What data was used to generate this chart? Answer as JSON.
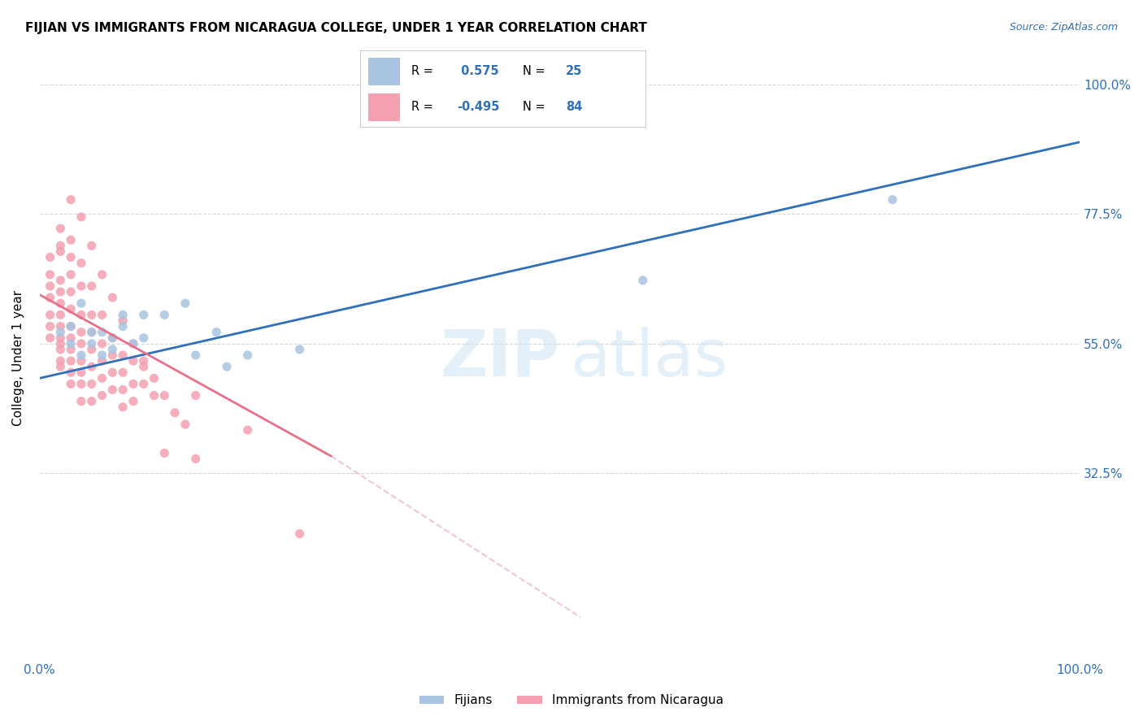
{
  "title": "FIJIAN VS IMMIGRANTS FROM NICARAGUA COLLEGE, UNDER 1 YEAR CORRELATION CHART",
  "source": "Source: ZipAtlas.com",
  "ylabel": "College, Under 1 year",
  "ytick_labels": [
    "100.0%",
    "77.5%",
    "55.0%",
    "32.5%"
  ],
  "ytick_values": [
    1.0,
    0.775,
    0.55,
    0.325
  ],
  "xlim": [
    0.0,
    1.0
  ],
  "ylim": [
    0.0,
    1.05
  ],
  "fijian_color": "#a8c4e0",
  "nicaragua_color": "#f4a0b0",
  "fijian_line_color": "#3070b8",
  "nicaragua_line_color": "#e8708a",
  "nicaragua_dashed_color": "#e8b0c0",
  "fijian_scatter": [
    [
      0.02,
      0.57
    ],
    [
      0.03,
      0.55
    ],
    [
      0.03,
      0.58
    ],
    [
      0.04,
      0.62
    ],
    [
      0.04,
      0.53
    ],
    [
      0.05,
      0.55
    ],
    [
      0.05,
      0.57
    ],
    [
      0.06,
      0.53
    ],
    [
      0.06,
      0.57
    ],
    [
      0.07,
      0.54
    ],
    [
      0.07,
      0.56
    ],
    [
      0.08,
      0.6
    ],
    [
      0.08,
      0.58
    ],
    [
      0.09,
      0.55
    ],
    [
      0.1,
      0.6
    ],
    [
      0.1,
      0.56
    ],
    [
      0.12,
      0.6
    ],
    [
      0.14,
      0.62
    ],
    [
      0.15,
      0.53
    ],
    [
      0.17,
      0.57
    ],
    [
      0.18,
      0.51
    ],
    [
      0.2,
      0.53
    ],
    [
      0.25,
      0.54
    ],
    [
      0.58,
      0.66
    ],
    [
      0.82,
      0.8
    ]
  ],
  "nicaragua_scatter": [
    [
      0.01,
      0.63
    ],
    [
      0.01,
      0.7
    ],
    [
      0.01,
      0.67
    ],
    [
      0.01,
      0.65
    ],
    [
      0.01,
      0.6
    ],
    [
      0.01,
      0.58
    ],
    [
      0.01,
      0.56
    ],
    [
      0.02,
      0.75
    ],
    [
      0.02,
      0.71
    ],
    [
      0.02,
      0.72
    ],
    [
      0.02,
      0.66
    ],
    [
      0.02,
      0.64
    ],
    [
      0.02,
      0.62
    ],
    [
      0.02,
      0.6
    ],
    [
      0.02,
      0.58
    ],
    [
      0.02,
      0.56
    ],
    [
      0.02,
      0.55
    ],
    [
      0.02,
      0.54
    ],
    [
      0.02,
      0.52
    ],
    [
      0.02,
      0.51
    ],
    [
      0.03,
      0.8
    ],
    [
      0.03,
      0.73
    ],
    [
      0.03,
      0.7
    ],
    [
      0.03,
      0.67
    ],
    [
      0.03,
      0.64
    ],
    [
      0.03,
      0.61
    ],
    [
      0.03,
      0.58
    ],
    [
      0.03,
      0.56
    ],
    [
      0.03,
      0.54
    ],
    [
      0.03,
      0.52
    ],
    [
      0.03,
      0.5
    ],
    [
      0.03,
      0.48
    ],
    [
      0.04,
      0.77
    ],
    [
      0.04,
      0.69
    ],
    [
      0.04,
      0.65
    ],
    [
      0.04,
      0.6
    ],
    [
      0.04,
      0.57
    ],
    [
      0.04,
      0.55
    ],
    [
      0.04,
      0.52
    ],
    [
      0.04,
      0.5
    ],
    [
      0.04,
      0.48
    ],
    [
      0.04,
      0.45
    ],
    [
      0.05,
      0.72
    ],
    [
      0.05,
      0.65
    ],
    [
      0.05,
      0.6
    ],
    [
      0.05,
      0.57
    ],
    [
      0.05,
      0.54
    ],
    [
      0.05,
      0.51
    ],
    [
      0.05,
      0.48
    ],
    [
      0.05,
      0.45
    ],
    [
      0.06,
      0.67
    ],
    [
      0.06,
      0.6
    ],
    [
      0.06,
      0.55
    ],
    [
      0.06,
      0.52
    ],
    [
      0.06,
      0.49
    ],
    [
      0.06,
      0.46
    ],
    [
      0.07,
      0.63
    ],
    [
      0.07,
      0.56
    ],
    [
      0.07,
      0.53
    ],
    [
      0.07,
      0.5
    ],
    [
      0.07,
      0.47
    ],
    [
      0.08,
      0.59
    ],
    [
      0.08,
      0.53
    ],
    [
      0.08,
      0.5
    ],
    [
      0.08,
      0.47
    ],
    [
      0.08,
      0.44
    ],
    [
      0.09,
      0.55
    ],
    [
      0.09,
      0.52
    ],
    [
      0.09,
      0.48
    ],
    [
      0.09,
      0.45
    ],
    [
      0.1,
      0.52
    ],
    [
      0.1,
      0.51
    ],
    [
      0.1,
      0.48
    ],
    [
      0.11,
      0.49
    ],
    [
      0.11,
      0.46
    ],
    [
      0.12,
      0.46
    ],
    [
      0.12,
      0.36
    ],
    [
      0.13,
      0.43
    ],
    [
      0.14,
      0.41
    ],
    [
      0.15,
      0.46
    ],
    [
      0.15,
      0.35
    ],
    [
      0.2,
      0.4
    ],
    [
      0.25,
      0.22
    ]
  ],
  "fijian_line": {
    "x0": 0.0,
    "y0": 0.49,
    "x1": 1.0,
    "y1": 0.9
  },
  "nicaragua_line": {
    "x0": 0.0,
    "y0": 0.635,
    "x1": 0.28,
    "y1": 0.355
  },
  "nicaragua_dashed_line": {
    "x0": 0.28,
    "y0": 0.355,
    "x1": 0.52,
    "y1": 0.075
  }
}
